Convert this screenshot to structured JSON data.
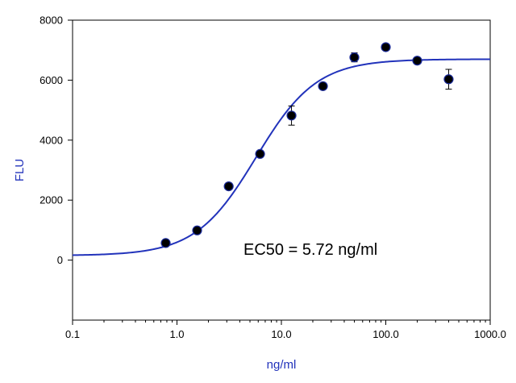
{
  "chart_data": {
    "type": "scatter",
    "xlabel": "ng/ml",
    "ylabel": "FLU",
    "x_scale": "log",
    "xlim": [
      0.1,
      1000
    ],
    "ylim": [
      -2000,
      8000
    ],
    "x_ticks": [
      {
        "value": 0.1,
        "label": "0.1"
      },
      {
        "value": 1,
        "label": "1.0"
      },
      {
        "value": 10,
        "label": "10.0"
      },
      {
        "value": 100,
        "label": "100.0"
      },
      {
        "value": 1000,
        "label": "1000.0"
      }
    ],
    "y_ticks": [
      {
        "value": 0,
        "label": "0"
      },
      {
        "value": 2000,
        "label": "2000"
      },
      {
        "value": 4000,
        "label": "4000"
      },
      {
        "value": 6000,
        "label": "6000"
      },
      {
        "value": 8000,
        "label": "8000"
      }
    ],
    "grid": false,
    "points": [
      {
        "x": 0.78,
        "y": 570,
        "err": 60
      },
      {
        "x": 1.56,
        "y": 990,
        "err": 70
      },
      {
        "x": 3.13,
        "y": 2460,
        "err": 60
      },
      {
        "x": 6.25,
        "y": 3540,
        "err": 80
      },
      {
        "x": 12.5,
        "y": 4820,
        "err": 320
      },
      {
        "x": 25,
        "y": 5800,
        "err": 70
      },
      {
        "x": 50,
        "y": 6760,
        "err": 150
      },
      {
        "x": 100,
        "y": 7100,
        "err": 60
      },
      {
        "x": 200,
        "y": 6650,
        "err": 60
      },
      {
        "x": 400,
        "y": 6030,
        "err": 330
      }
    ],
    "fit": {
      "model": "4PL",
      "bottom": 150,
      "top": 6700,
      "ec50": 5.72,
      "hill": 1.5
    },
    "annotation": "EC50 = 5.72 ng/ml",
    "colors": {
      "curve": "#2233bb",
      "axis_title": "#2233bb",
      "marker_fill": "#000000",
      "marker_edge": "#1a2a99",
      "axis": "#000000"
    }
  }
}
